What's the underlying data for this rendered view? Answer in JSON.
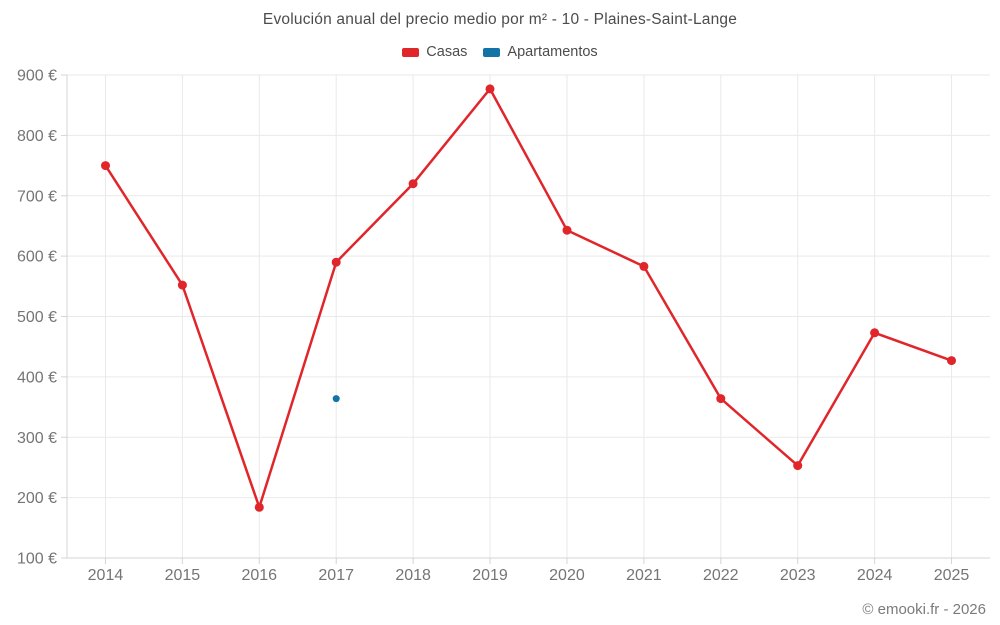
{
  "page": {
    "footer": "© emooki.fr - 2026"
  },
  "chart_data": {
    "type": "line",
    "title": "Evolución anual del precio medio por m² - 10 - Plaines-Saint-Lange",
    "categories": [
      "2014",
      "2015",
      "2016",
      "2017",
      "2018",
      "2019",
      "2020",
      "2021",
      "2022",
      "2023",
      "2024",
      "2025"
    ],
    "series": [
      {
        "name": "Casas",
        "color": "#e0262b",
        "marker_radius": 4.5,
        "values": [
          750,
          552,
          184,
          590,
          720,
          877,
          643,
          583,
          364,
          253,
          473,
          427
        ]
      },
      {
        "name": "Apartamentos",
        "color": "#1273a6",
        "marker_radius": 3.5,
        "values": [
          null,
          null,
          null,
          364,
          null,
          null,
          null,
          null,
          null,
          null,
          null,
          null
        ]
      }
    ],
    "ylabel": "",
    "xlabel": "",
    "ylim": [
      100,
      900
    ],
    "ytick_step": 100,
    "ytick_suffix": " €",
    "grid": true,
    "legend_position": "top",
    "colors": {
      "grid": "#e9e9e9",
      "axis": "#d4d4d4",
      "tick_label": "#757575"
    }
  }
}
